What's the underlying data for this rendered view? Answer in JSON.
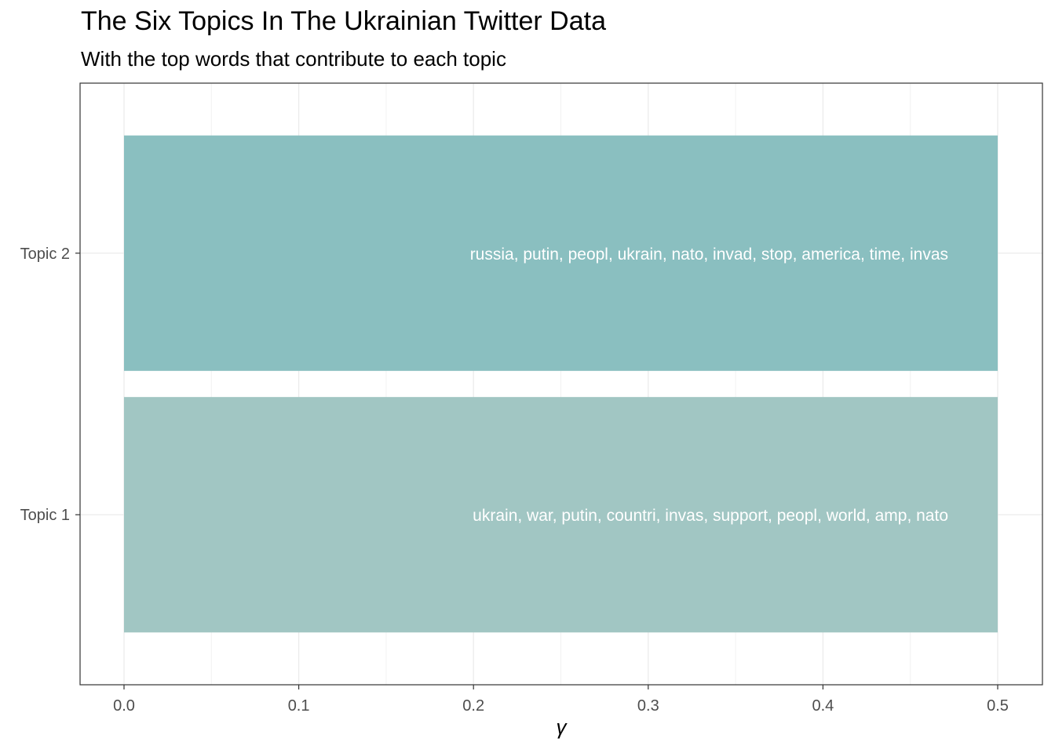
{
  "chart_data": {
    "type": "bar",
    "orientation": "horizontal",
    "title": "The Six Topics In The Ukrainian Twitter Data",
    "subtitle": "With the top words that contribute to each topic",
    "xlabel": "γ",
    "ylabel": "",
    "xlim": [
      -0.025,
      0.525
    ],
    "x_ticks": [
      "0.0",
      "0.1",
      "0.2",
      "0.3",
      "0.4",
      "0.5"
    ],
    "x_tick_values": [
      0,
      0.1,
      0.2,
      0.3,
      0.4,
      0.5
    ],
    "grid": true,
    "categories": [
      "Topic 1",
      "Topic 2"
    ],
    "values": [
      0.5,
      0.5
    ],
    "colors": [
      "#a1c6c3",
      "#8abfc0"
    ],
    "bar_labels": [
      "ukrain, war, putin, countri, invas, support, peopl, world, amp, nato",
      "russia, putin, peopl, ukrain, nato, invad, stop, america, time, invas"
    ]
  }
}
